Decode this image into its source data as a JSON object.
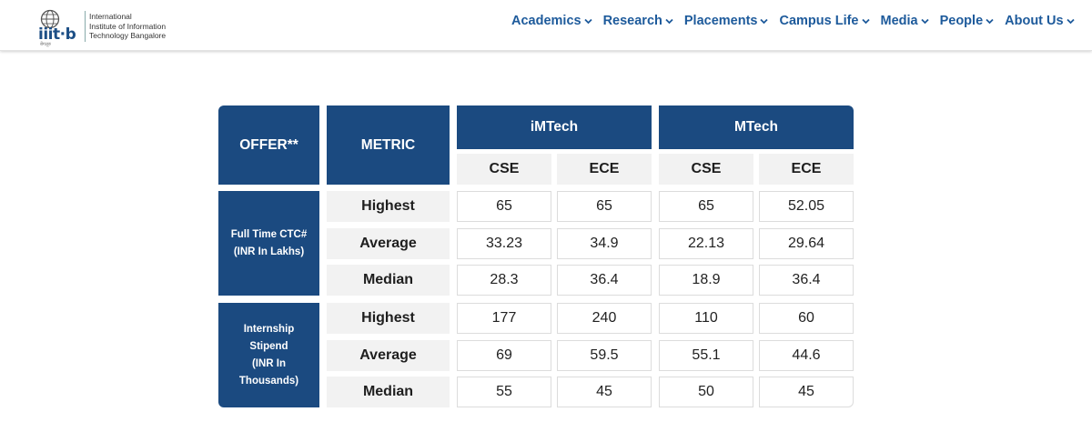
{
  "header": {
    "logo_mark": "iiit·b",
    "logo_sub": "बेंगलूरु",
    "logo_text": [
      "International",
      "Institute of Information",
      "Technology Bangalore"
    ],
    "nav": [
      "Academics",
      "Research",
      "Placements",
      "Campus Life",
      "Media",
      "People",
      "About Us"
    ]
  },
  "table": {
    "offer_header": "OFFER**",
    "metric_header": "METRIC",
    "programs": [
      "iMTech",
      "MTech"
    ],
    "branches": [
      "CSE",
      "ECE",
      "CSE",
      "ECE"
    ],
    "sections": [
      {
        "label_lines": [
          "Full Time CTC#",
          "(INR In Lakhs)"
        ],
        "rows": [
          {
            "metric": "Highest",
            "values": [
              "65",
              "65",
              "65",
              "52.05"
            ]
          },
          {
            "metric": "Average",
            "values": [
              "33.23",
              "34.9",
              "22.13",
              "29.64"
            ]
          },
          {
            "metric": "Median",
            "values": [
              "28.3",
              "36.4",
              "18.9",
              "36.4"
            ]
          }
        ]
      },
      {
        "label_lines": [
          "Internship",
          "Stipend",
          "(INR In",
          "Thousands)"
        ],
        "rows": [
          {
            "metric": "Highest",
            "values": [
              "177",
              "240",
              "110",
              "60"
            ]
          },
          {
            "metric": "Average",
            "values": [
              "69",
              "59.5",
              "55.1",
              "44.6"
            ]
          },
          {
            "metric": "Median",
            "values": [
              "55",
              "45",
              "50",
              "45"
            ]
          }
        ]
      }
    ]
  }
}
